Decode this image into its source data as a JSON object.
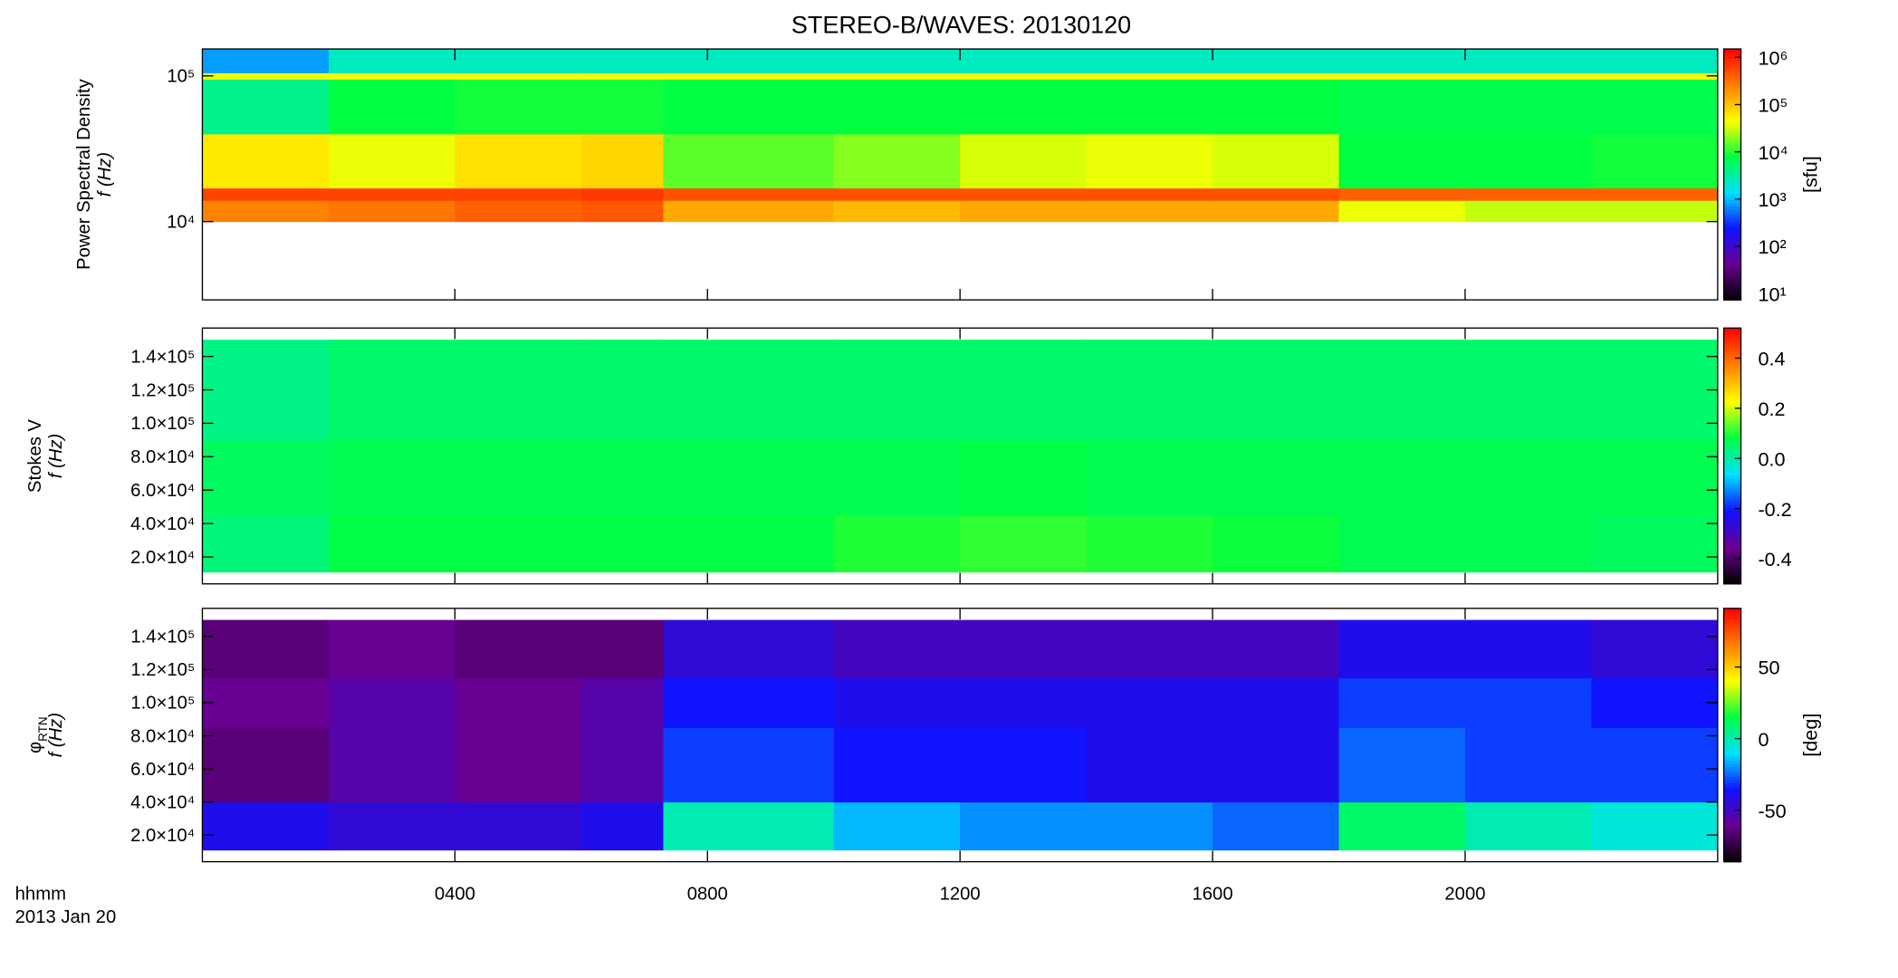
{
  "chart_data": [
    {
      "type": "heatmap",
      "title": "STEREO-B/WAVES: 20130120",
      "ylabel": [
        "Power Spectral Density",
        "f (Hz)"
      ],
      "xlim": [
        0,
        24
      ],
      "ylim": [
        2900,
        153000
      ],
      "ylog": true,
      "yticks": [
        {
          "value": 10000,
          "label": "10⁴"
        },
        {
          "value": 100000,
          "label": "10⁵"
        }
      ],
      "xbins": [
        0,
        2,
        4,
        6,
        7.3,
        10,
        12,
        14,
        16,
        18,
        20,
        22,
        24
      ],
      "ybins": [
        10000,
        14000,
        17000,
        40000,
        95000,
        105000,
        153000
      ],
      "values": [
        [
          250000,
          300000,
          400000,
          450000,
          150000,
          120000,
          150000,
          150000,
          150000,
          40000,
          30000,
          30000
        ],
        [
          600000,
          600000,
          600000,
          700000,
          500000,
          500000,
          500000,
          500000,
          500000,
          400000,
          400000,
          400000
        ],
        [
          60000,
          40000,
          70000,
          80000,
          15000,
          20000,
          35000,
          40000,
          35000,
          8000,
          8000,
          9000
        ],
        [
          4000,
          8000,
          9000,
          9000,
          8000,
          8000,
          8000,
          8000,
          8000,
          7000,
          7000,
          7000
        ],
        [
          40000,
          50000,
          50000,
          50000,
          50000,
          50000,
          50000,
          50000,
          50000,
          50000,
          50000,
          50000
        ],
        [
          800,
          2500,
          2500,
          2500,
          2500,
          2500,
          2500,
          2500,
          2500,
          2500,
          2500,
          2500
        ]
      ],
      "clim": [
        7.4,
        1500000
      ],
      "clog": true,
      "cticks": [
        {
          "value": 10,
          "label": "10¹"
        },
        {
          "value": 100,
          "label": "10²"
        },
        {
          "value": 1000,
          "label": "10³"
        },
        {
          "value": 10000,
          "label": "10⁴"
        },
        {
          "value": 100000,
          "label": "10⁵"
        },
        {
          "value": 1000000,
          "label": "10⁶"
        }
      ],
      "clabel": "[sfu]",
      "colormap": [
        "#000000",
        "#6a0090",
        "#1010ff",
        "#00e0ff",
        "#00ff40",
        "#ffff00",
        "#ff8000",
        "#ff0000"
      ]
    },
    {
      "type": "heatmap",
      "ylabel": [
        "Stokes V",
        "f (Hz)"
      ],
      "xlim": [
        0,
        24
      ],
      "ylim": [
        3900,
        157000
      ],
      "ylog": false,
      "yticks": [
        {
          "value": 20000,
          "label": "2.0×10⁴"
        },
        {
          "value": 40000,
          "label": "4.0×10⁴"
        },
        {
          "value": 60000,
          "label": "6.0×10⁴"
        },
        {
          "value": 80000,
          "label": "8.0×10⁴"
        },
        {
          "value": 100000,
          "label": "1.0×10⁵"
        },
        {
          "value": 120000,
          "label": "1.2×10⁵"
        },
        {
          "value": 140000,
          "label": "1.4×10⁵"
        }
      ],
      "xbins": [
        0,
        2,
        4,
        6,
        7.3,
        10,
        12,
        14,
        16,
        18,
        20,
        22,
        24
      ],
      "ybins": [
        11000,
        45000,
        90000,
        150000
      ],
      "values": [
        [
          0.04,
          0.08,
          0.08,
          0.08,
          0.08,
          0.1,
          0.11,
          0.1,
          0.09,
          0.07,
          0.07,
          0.06
        ],
        [
          0.06,
          0.07,
          0.07,
          0.07,
          0.07,
          0.07,
          0.08,
          0.07,
          0.07,
          0.07,
          0.07,
          0.07
        ],
        [
          0.03,
          0.05,
          0.05,
          0.05,
          0.05,
          0.05,
          0.05,
          0.05,
          0.05,
          0.05,
          0.05,
          0.05
        ]
      ],
      "clim": [
        -0.5,
        0.52
      ],
      "clog": false,
      "cticks": [
        -0.4,
        -0.2,
        {
          "value": 0,
          "label": "0.0"
        },
        0.2,
        0.4
      ],
      "colormap": [
        "#000000",
        "#6a0090",
        "#1010ff",
        "#00e0ff",
        "#00ff40",
        "#ffff00",
        "#ff8000",
        "#ff0000"
      ]
    },
    {
      "type": "heatmap",
      "ylabel": [
        "φ",
        "f (Hz)"
      ],
      "ylabel_sub": "RTN",
      "xlim": [
        0,
        24
      ],
      "ylim": [
        3900,
        157000
      ],
      "ylog": false,
      "yticks": [
        {
          "value": 20000,
          "label": "2.0×10⁴"
        },
        {
          "value": 40000,
          "label": "4.0×10⁴"
        },
        {
          "value": 60000,
          "label": "6.0×10⁴"
        },
        {
          "value": 80000,
          "label": "8.0×10⁴"
        },
        {
          "value": 100000,
          "label": "1.0×10⁵"
        },
        {
          "value": 120000,
          "label": "1.2×10⁵"
        },
        {
          "value": 140000,
          "label": "1.4×10⁵"
        }
      ],
      "xticks": [
        {
          "value": 4,
          "label": "0400"
        },
        {
          "value": 8,
          "label": "0800"
        },
        {
          "value": 12,
          "label": "1200"
        },
        {
          "value": 16,
          "label": "1600"
        },
        {
          "value": 20,
          "label": "2000"
        }
      ],
      "xlabel": [
        "hhmm",
        "2013 Jan 20"
      ],
      "xbins": [
        0,
        2,
        4,
        6,
        7.3,
        10,
        12,
        14,
        16,
        18,
        20,
        22,
        24
      ],
      "ybins": [
        11000,
        40000,
        85000,
        115000,
        150000
      ],
      "values": [
        [
          -40,
          -45,
          -45,
          -40,
          0,
          -15,
          -20,
          -20,
          -25,
          10,
          0,
          -5
        ],
        [
          -65,
          -55,
          -60,
          -55,
          -30,
          -35,
          -35,
          -40,
          -40,
          -25,
          -30,
          -30
        ],
        [
          -60,
          -55,
          -60,
          -55,
          -35,
          -40,
          -40,
          -40,
          -40,
          -30,
          -30,
          -35
        ],
        [
          -65,
          -60,
          -65,
          -65,
          -45,
          -50,
          -50,
          -50,
          -50,
          -40,
          -40,
          -45
        ]
      ],
      "clim": [
        -86,
        91
      ],
      "clog": false,
      "cticks": [
        -50,
        0,
        50
      ],
      "clabel": "[deg]",
      "colormap": [
        "#000000",
        "#6a0090",
        "#1010ff",
        "#00e0ff",
        "#00ff40",
        "#ffff00",
        "#ff8000",
        "#ff0000"
      ]
    }
  ]
}
